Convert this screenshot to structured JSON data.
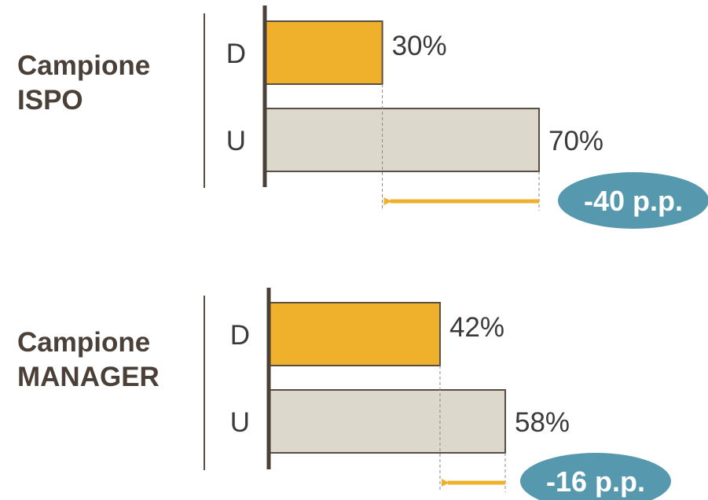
{
  "colors": {
    "d_bar": "#efb12c",
    "u_bar": "#ddd8cc",
    "bar_stroke": "#5a4e42",
    "axis": "#4a4038",
    "arrow": "#efb12c",
    "badge": "#5699ae"
  },
  "chart_data": [
    {
      "type": "bar",
      "orientation": "horizontal",
      "group_label": [
        "Campione",
        "ISPO"
      ],
      "categories": [
        "D",
        "U"
      ],
      "values": [
        30,
        70
      ],
      "value_labels": [
        "30%",
        "70%"
      ],
      "xlim": [
        0,
        100
      ],
      "difference": {
        "value": -40,
        "label": "-40 p.p."
      }
    },
    {
      "type": "bar",
      "orientation": "horizontal",
      "group_label": [
        "Campione",
        "MANAGER"
      ],
      "categories": [
        "D",
        "U"
      ],
      "values": [
        42,
        58
      ],
      "value_labels": [
        "42%",
        "58%"
      ],
      "xlim": [
        0,
        100
      ],
      "difference": {
        "value": -16,
        "label": "-16 p.p."
      }
    }
  ]
}
